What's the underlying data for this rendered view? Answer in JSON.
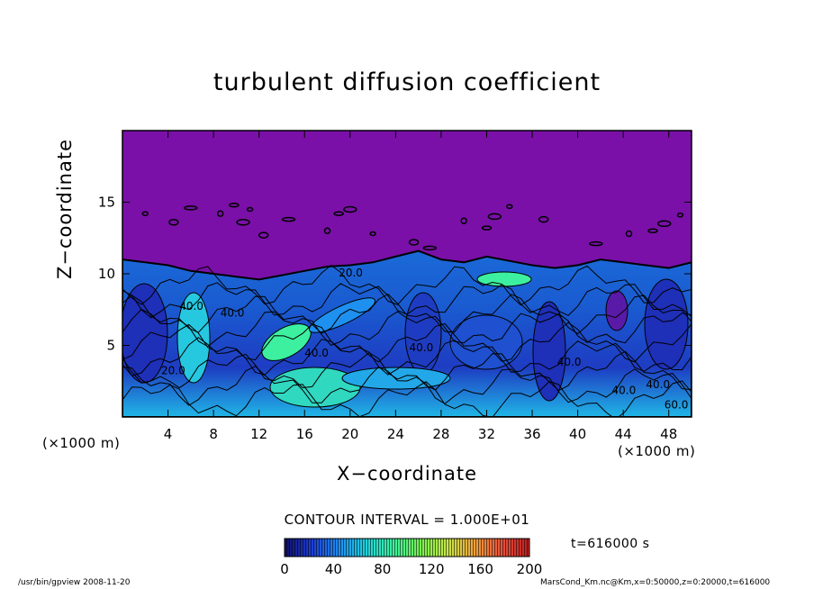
{
  "chart_data": {
    "type": "heatmap",
    "title": "turbulent diffusion coefficient",
    "xlabel": "X−coordinate",
    "ylabel": "Z−coordinate",
    "x_unit": "(×1000 m)",
    "y_unit": "(×1000 m)",
    "xlim": [
      0,
      50
    ],
    "ylim": [
      0,
      20
    ],
    "x_ticks": [
      4,
      8,
      12,
      16,
      20,
      24,
      28,
      32,
      36,
      40,
      44,
      48
    ],
    "y_ticks": [
      5,
      10,
      15
    ],
    "colorbar": {
      "range": [
        0,
        200
      ],
      "ticks": [
        0,
        40,
        80,
        120,
        160,
        200
      ],
      "colors": [
        "#10106a",
        "#1e3cd2",
        "#1e8cf0",
        "#1ed2dc",
        "#3cf0a0",
        "#78f050",
        "#c8e646",
        "#f0a03c",
        "#e6503c",
        "#be1e1e"
      ]
    },
    "contour_interval": "CONTOUR INTERVAL = 1.000E+01",
    "contour_labels": [
      "20.0",
      "40.0",
      "40.0",
      "40.0",
      "40.0",
      "40.0",
      "40.0",
      "60.0",
      "20.0",
      "40.0"
    ],
    "background_color_above_boundary": "#7a10a8",
    "boundary_layer_top_km": [
      11,
      10.8,
      10.6,
      10.2,
      10.0,
      9.8,
      9.6,
      9.9,
      10.2,
      10.5,
      10.6,
      10.8,
      11.2,
      11.6,
      11.0,
      10.8,
      11.2,
      10.9,
      10.6,
      10.4,
      10.6,
      11.0,
      10.8,
      10.6,
      10.4,
      10.8
    ]
  },
  "annotations": {
    "time": "t=616000 s",
    "footer_left": "/usr/bin/gpview   2008-11-20",
    "footer_right": "MarsCond_Km.nc@Km,x=0:50000,z=0:20000,t=616000"
  }
}
